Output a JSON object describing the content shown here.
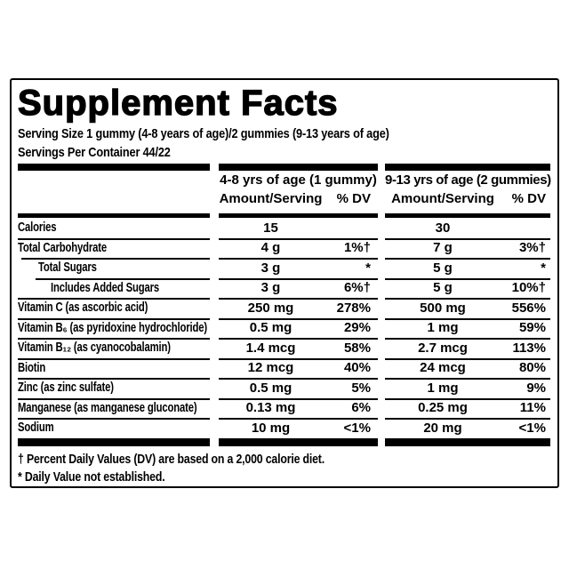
{
  "panel": {
    "title": "Supplement Facts",
    "serving_size": "Serving Size 1 gummy (4-8 years of age)/2 gummies (9-13 years of age)",
    "servings_per_container": "Servings Per Container 44/22",
    "columns": [
      {
        "group": "4-8 yrs of age (1 gummy)",
        "amount_label": "Amount/Serving",
        "dv_label": "% DV"
      },
      {
        "group": "9-13 yrs of age (2 gummies)",
        "amount_label": "Amount/Serving",
        "dv_label": "% DV"
      }
    ],
    "rows": [
      {
        "name": "Calories",
        "indent": 0,
        "amount_4_8": "15",
        "dv_4_8": "",
        "amount_9_13": "30",
        "dv_9_13": ""
      },
      {
        "name": "Total Carbohydrate",
        "indent": 0,
        "amount_4_8": "4 g",
        "dv_4_8": "1%†",
        "amount_9_13": "7 g",
        "dv_9_13": "3%†"
      },
      {
        "name": "Total Sugars",
        "indent": 1,
        "amount_4_8": "3 g",
        "dv_4_8": "*",
        "amount_9_13": "5 g",
        "dv_9_13": "*"
      },
      {
        "name": "Includes Added Sugars",
        "indent": 2,
        "amount_4_8": "3 g",
        "dv_4_8": "6%†",
        "amount_9_13": "5 g",
        "dv_9_13": "10%†"
      },
      {
        "name": "Vitamin C (as ascorbic acid)",
        "indent": 0,
        "amount_4_8": "250 mg",
        "dv_4_8": "278%",
        "amount_9_13": "500 mg",
        "dv_9_13": "556%"
      },
      {
        "name": "Vitamin B₆ (as pyridoxine hydrochloride)",
        "indent": 0,
        "amount_4_8": "0.5 mg",
        "dv_4_8": "29%",
        "amount_9_13": "1 mg",
        "dv_9_13": "59%"
      },
      {
        "name": "Vitamin B₁₂ (as cyanocobalamin)",
        "indent": 0,
        "amount_4_8": "1.4 mcg",
        "dv_4_8": "58%",
        "amount_9_13": "2.7 mcg",
        "dv_9_13": "113%"
      },
      {
        "name": "Biotin",
        "indent": 0,
        "amount_4_8": "12 mcg",
        "dv_4_8": "40%",
        "amount_9_13": "24 mcg",
        "dv_9_13": "80%"
      },
      {
        "name": "Zinc (as zinc sulfate)",
        "indent": 0,
        "amount_4_8": "0.5 mg",
        "dv_4_8": "5%",
        "amount_9_13": "1 mg",
        "dv_9_13": "9%"
      },
      {
        "name": "Manganese (as manganese gluconate)",
        "indent": 0,
        "amount_4_8": "0.13 mg",
        "dv_4_8": "6%",
        "amount_9_13": "0.25 mg",
        "dv_9_13": "11%"
      },
      {
        "name": "Sodium",
        "indent": 0,
        "amount_4_8": "10 mg",
        "dv_4_8": "<1%",
        "amount_9_13": "20 mg",
        "dv_9_13": "<1%"
      }
    ],
    "footnotes": [
      "† Percent Daily Values (DV) are based on a 2,000 calorie diet.",
      "* Daily Value not established."
    ],
    "colors": {
      "ink": "#000000",
      "background": "#ffffff"
    }
  }
}
